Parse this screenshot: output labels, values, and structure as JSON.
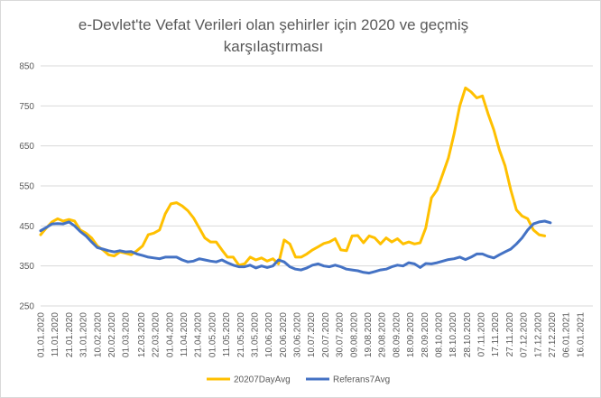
{
  "chart_data": {
    "type": "line",
    "title_line1": "e-Devlet'te Vefat Verileri olan şehirler için 2020 ve geçmiş",
    "title_line2": "karşılaştırması",
    "ylim": [
      250,
      850
    ],
    "yticks": [
      "250",
      "350",
      "450",
      "550",
      "650",
      "750",
      "850"
    ],
    "grid": true,
    "legend_position": "bottom",
    "x_labels": [
      "01.01.2020",
      "11.01.2020",
      "21.01.2020",
      "31.01.2020",
      "10.02.2020",
      "20.02.2020",
      "01.03.2020",
      "12.03.2020",
      "22.03.2020",
      "01.04.2020",
      "11.04.2020",
      "21.04.2020",
      "01.05.2020",
      "11.05.2020",
      "21.05.2020",
      "31.05.2020",
      "10.06.2020",
      "20.06.2020",
      "30.06.2020",
      "10.07.2020",
      "20.07.2020",
      "30.07.2020",
      "09.08.2020",
      "19.08.2020",
      "29.08.2020",
      "08.09.2020",
      "18.09.2020",
      "28.09.2020",
      "08.10.2020",
      "18.10.2020",
      "28.10.2020",
      "07.11.2020",
      "17.11.2020",
      "27.11.2020",
      "07.12.2020",
      "17.12.2020",
      "27.12.2020",
      "06.01.2021",
      "16.01.2021"
    ],
    "x_days": [
      0,
      10,
      20,
      30,
      40,
      50,
      60,
      71,
      81,
      91,
      101,
      111,
      121,
      131,
      141,
      151,
      161,
      171,
      181,
      191,
      201,
      211,
      221,
      231,
      241,
      251,
      261,
      271,
      281,
      291,
      301,
      311,
      321,
      331,
      341,
      351,
      361,
      371,
      381
    ],
    "x_range": [
      0,
      390
    ],
    "series": [
      {
        "name": "20207DayAvg",
        "color": "#FFC000",
        "points": [
          [
            0,
            428
          ],
          [
            4,
            445
          ],
          [
            8,
            460
          ],
          [
            12,
            468
          ],
          [
            16,
            462
          ],
          [
            20,
            466
          ],
          [
            24,
            462
          ],
          [
            28,
            440
          ],
          [
            32,
            432
          ],
          [
            36,
            420
          ],
          [
            40,
            400
          ],
          [
            44,
            390
          ],
          [
            48,
            378
          ],
          [
            52,
            375
          ],
          [
            56,
            385
          ],
          [
            60,
            382
          ],
          [
            64,
            378
          ],
          [
            68,
            388
          ],
          [
            72,
            400
          ],
          [
            76,
            428
          ],
          [
            80,
            432
          ],
          [
            84,
            440
          ],
          [
            88,
            480
          ],
          [
            92,
            505
          ],
          [
            96,
            508
          ],
          [
            100,
            500
          ],
          [
            104,
            488
          ],
          [
            108,
            470
          ],
          [
            112,
            445
          ],
          [
            116,
            420
          ],
          [
            120,
            410
          ],
          [
            124,
            410
          ],
          [
            128,
            390
          ],
          [
            132,
            372
          ],
          [
            136,
            372
          ],
          [
            140,
            352
          ],
          [
            144,
            355
          ],
          [
            148,
            372
          ],
          [
            152,
            365
          ],
          [
            156,
            370
          ],
          [
            160,
            362
          ],
          [
            164,
            368
          ],
          [
            168,
            355
          ],
          [
            172,
            415
          ],
          [
            176,
            405
          ],
          [
            180,
            372
          ],
          [
            184,
            372
          ],
          [
            188,
            380
          ],
          [
            192,
            390
          ],
          [
            196,
            398
          ],
          [
            200,
            406
          ],
          [
            204,
            410
          ],
          [
            208,
            418
          ],
          [
            212,
            390
          ],
          [
            216,
            388
          ],
          [
            220,
            425
          ],
          [
            224,
            426
          ],
          [
            228,
            408
          ],
          [
            232,
            425
          ],
          [
            236,
            420
          ],
          [
            240,
            405
          ],
          [
            244,
            420
          ],
          [
            248,
            410
          ],
          [
            252,
            418
          ],
          [
            256,
            405
          ],
          [
            260,
            410
          ],
          [
            264,
            405
          ],
          [
            268,
            408
          ],
          [
            272,
            445
          ],
          [
            276,
            520
          ],
          [
            280,
            540
          ],
          [
            284,
            580
          ],
          [
            288,
            620
          ],
          [
            292,
            680
          ],
          [
            296,
            750
          ],
          [
            300,
            795
          ],
          [
            304,
            785
          ],
          [
            308,
            770
          ],
          [
            312,
            775
          ],
          [
            316,
            730
          ],
          [
            320,
            690
          ],
          [
            324,
            640
          ],
          [
            328,
            600
          ],
          [
            332,
            540
          ],
          [
            336,
            490
          ],
          [
            340,
            475
          ],
          [
            344,
            468
          ],
          [
            348,
            440
          ],
          [
            352,
            428
          ],
          [
            356,
            425
          ]
        ]
      },
      {
        "name": "Referans7Avg",
        "color": "#4472C4",
        "points": [
          [
            0,
            438
          ],
          [
            4,
            446
          ],
          [
            8,
            455
          ],
          [
            12,
            456
          ],
          [
            16,
            455
          ],
          [
            20,
            460
          ],
          [
            24,
            450
          ],
          [
            28,
            436
          ],
          [
            32,
            425
          ],
          [
            36,
            410
          ],
          [
            40,
            396
          ],
          [
            44,
            392
          ],
          [
            48,
            388
          ],
          [
            52,
            385
          ],
          [
            56,
            388
          ],
          [
            60,
            385
          ],
          [
            64,
            386
          ],
          [
            68,
            380
          ],
          [
            72,
            376
          ],
          [
            76,
            372
          ],
          [
            80,
            370
          ],
          [
            84,
            368
          ],
          [
            88,
            372
          ],
          [
            92,
            372
          ],
          [
            96,
            372
          ],
          [
            100,
            365
          ],
          [
            104,
            360
          ],
          [
            108,
            362
          ],
          [
            112,
            368
          ],
          [
            116,
            365
          ],
          [
            120,
            362
          ],
          [
            124,
            360
          ],
          [
            128,
            365
          ],
          [
            132,
            358
          ],
          [
            136,
            352
          ],
          [
            140,
            348
          ],
          [
            144,
            348
          ],
          [
            148,
            352
          ],
          [
            152,
            345
          ],
          [
            156,
            350
          ],
          [
            160,
            346
          ],
          [
            164,
            350
          ],
          [
            168,
            365
          ],
          [
            172,
            360
          ],
          [
            176,
            348
          ],
          [
            180,
            342
          ],
          [
            184,
            340
          ],
          [
            188,
            345
          ],
          [
            192,
            352
          ],
          [
            196,
            355
          ],
          [
            200,
            350
          ],
          [
            204,
            348
          ],
          [
            208,
            352
          ],
          [
            212,
            348
          ],
          [
            216,
            342
          ],
          [
            220,
            340
          ],
          [
            224,
            338
          ],
          [
            228,
            334
          ],
          [
            232,
            332
          ],
          [
            236,
            336
          ],
          [
            240,
            340
          ],
          [
            244,
            342
          ],
          [
            248,
            348
          ],
          [
            252,
            352
          ],
          [
            256,
            350
          ],
          [
            260,
            358
          ],
          [
            264,
            355
          ],
          [
            268,
            346
          ],
          [
            272,
            356
          ],
          [
            276,
            355
          ],
          [
            280,
            358
          ],
          [
            284,
            362
          ],
          [
            288,
            366
          ],
          [
            292,
            368
          ],
          [
            296,
            372
          ],
          [
            300,
            366
          ],
          [
            304,
            372
          ],
          [
            308,
            380
          ],
          [
            312,
            380
          ],
          [
            316,
            374
          ],
          [
            320,
            370
          ],
          [
            324,
            378
          ],
          [
            328,
            385
          ],
          [
            332,
            392
          ],
          [
            336,
            405
          ],
          [
            340,
            420
          ],
          [
            344,
            440
          ],
          [
            348,
            455
          ],
          [
            352,
            460
          ],
          [
            356,
            462
          ],
          [
            360,
            458
          ]
        ]
      }
    ]
  }
}
